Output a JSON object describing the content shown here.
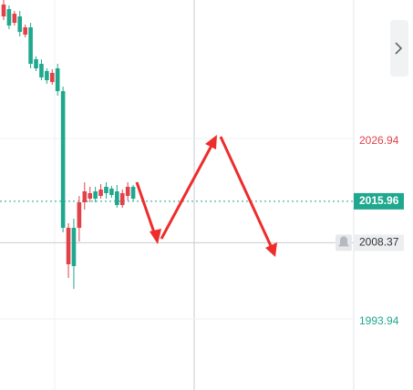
{
  "chart_data": {
    "type": "candlestick",
    "categories": [
      null,
      null,
      null,
      null,
      null,
      null,
      null,
      null,
      null,
      null,
      null,
      null,
      null,
      null,
      null,
      null,
      null,
      null,
      null,
      null,
      null,
      null,
      null,
      null,
      null
    ],
    "open": [
      2049.77,
      2051.1,
      2048.6,
      2049.77,
      2046.44,
      2047.77,
      2041.94,
      2041.1,
      2039.77,
      2037.77,
      2040.27,
      2036.1,
      2004.44,
      2011.1,
      2011.1,
      2015.77,
      2016.44,
      2017.77,
      2016.94,
      2018.6,
      2018.27,
      2017.77,
      2015.27,
      2016.94,
      2018.6
    ],
    "high": [
      2052.77,
      2051.77,
      2050.77,
      2050.77,
      2048.27,
      2048.6,
      2042.44,
      2041.94,
      2040.27,
      2040.1,
      2041.1,
      2036.94,
      2011.94,
      2012.77,
      2016.94,
      2019.44,
      2018.6,
      2018.6,
      2019.1,
      2019.44,
      2018.77,
      2018.94,
      2018.1,
      2019.44,
      2018.94
    ],
    "low": [
      2049.1,
      2047.44,
      2048.1,
      2046.1,
      2045.94,
      2040.27,
      2039.77,
      2038.1,
      2037.44,
      2037.27,
      2035.27,
      2010.27,
      2001.94,
      1999.94,
      2008.6,
      2014.44,
      2015.77,
      2015.77,
      2016.44,
      2016.44,
      2016.6,
      2014.77,
      2014.77,
      2016.1,
      2016.1
    ],
    "close": [
      2051.94,
      2048.1,
      2050.27,
      2046.94,
      2047.77,
      2041.1,
      2040.27,
      2038.6,
      2038.1,
      2039.44,
      2036.1,
      2011.1,
      2011.1,
      2004.1,
      2015.77,
      2017.77,
      2017.44,
      2016.44,
      2018.1,
      2017.44,
      2017.1,
      2015.27,
      2017.44,
      2018.6,
      2016.44
    ],
    "up_color": "#e0424a",
    "down_color": "#1fa88e",
    "ylim": [
      1981.44,
      2052.77
    ],
    "price_labels": [
      {
        "value": 2026.94,
        "color": "#e0424a",
        "kind": "plain"
      },
      {
        "value": 2015.96,
        "color": "#1fa88e",
        "kind": "current"
      },
      {
        "value": 2008.37,
        "color": "#333333",
        "kind": "crosshair"
      },
      {
        "value": 1993.94,
        "color": "#1fa88e",
        "kind": "plain"
      }
    ]
  }
}
